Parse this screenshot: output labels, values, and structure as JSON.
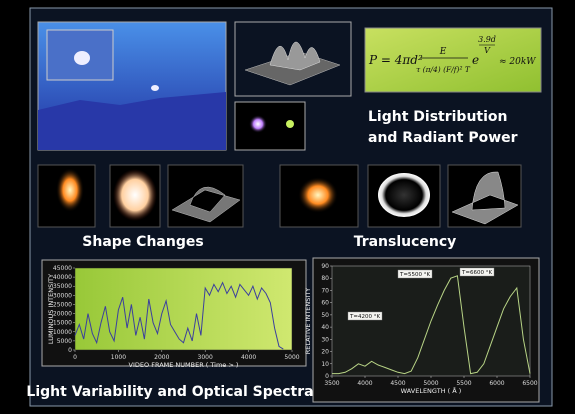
{
  "captions": {
    "light_distribution": "Light Distribution",
    "radiant_power": "and Radiant Power",
    "shape_changes": "Shape Changes",
    "translucency": "Translucency",
    "variability": "Light Variability and Optical Spectra"
  },
  "formula": {
    "lhs": "P = 4πd²",
    "numerator": "E",
    "denominator": "τ (π/4) (F/f)² T",
    "exp_base": "e",
    "exp_num": "3.9d",
    "exp_den": "V",
    "result": "≈ 20kW"
  },
  "chart_data": [
    {
      "type": "line",
      "xlabel": "VIDEO FRAME NUMBER ( Time > )",
      "ylabel": "LUMINOUS INTENSITY",
      "x": [
        0,
        100,
        200,
        300,
        400,
        500,
        600,
        700,
        800,
        900,
        1000,
        1100,
        1200,
        1300,
        1400,
        1500,
        1600,
        1700,
        1800,
        1900,
        2000,
        2100,
        2200,
        2300,
        2400,
        2500,
        2600,
        2700,
        2800,
        2900,
        3000,
        3100,
        3200,
        3300,
        3400,
        3500,
        3600,
        3700,
        3800,
        3900,
        4000,
        4100,
        4200,
        4300,
        4400,
        4500,
        4600,
        4700,
        4800
      ],
      "series": [
        {
          "color": "#3b3f9e",
          "values": [
            8000,
            14000,
            6000,
            20000,
            9000,
            4000,
            15000,
            24000,
            10000,
            5000,
            22000,
            29000,
            12000,
            25000,
            8000,
            18000,
            6000,
            28000,
            15000,
            9000,
            20000,
            27000,
            14000,
            10000,
            6000,
            4000,
            12000,
            5000,
            20000,
            8000,
            34000,
            30000,
            36000,
            32000,
            37000,
            31000,
            35000,
            29000,
            36000,
            33000,
            30000,
            35000,
            28000,
            34000,
            31000,
            26000,
            12000,
            2000,
            500
          ]
        }
      ],
      "xlim": [
        0,
        5000
      ],
      "xticks": [
        0,
        1000,
        2000,
        3000,
        4000,
        5000
      ],
      "ylim": [
        0,
        45000
      ],
      "yticks": [
        0,
        5000,
        10000,
        15000,
        20000,
        25000,
        30000,
        35000,
        40000,
        45000
      ]
    },
    {
      "type": "line",
      "xlabel": "WAVELENGTH ( Å )",
      "ylabel": "RELATIVE INTENSITY",
      "annotations": [
        "T=4200 °K",
        "T=5500 °K",
        "T=6600 °K"
      ],
      "x": [
        3500,
        3600,
        3700,
        3800,
        3900,
        4000,
        4100,
        4200,
        4300,
        4400,
        4500,
        4600,
        4700,
        4800,
        4900,
        5000,
        5100,
        5200,
        5300,
        5400,
        5500,
        5600,
        5700,
        5800,
        5900,
        6000,
        6100,
        6200,
        6300,
        6400,
        6500
      ],
      "series": [
        {
          "color": "#b8d486",
          "values": [
            2,
            2,
            3,
            6,
            10,
            8,
            12,
            9,
            7,
            5,
            3,
            2,
            4,
            15,
            30,
            45,
            58,
            70,
            80,
            82,
            40,
            2,
            3,
            10,
            25,
            40,
            55,
            65,
            72,
            30,
            2
          ]
        }
      ],
      "xlim": [
        3500,
        6500
      ],
      "xticks": [
        3500,
        4000,
        4500,
        5000,
        5500,
        6000,
        6500
      ],
      "ylim": [
        0,
        90
      ],
      "yticks": [
        0,
        10,
        20,
        30,
        40,
        50,
        60,
        70,
        80,
        90
      ]
    }
  ]
}
